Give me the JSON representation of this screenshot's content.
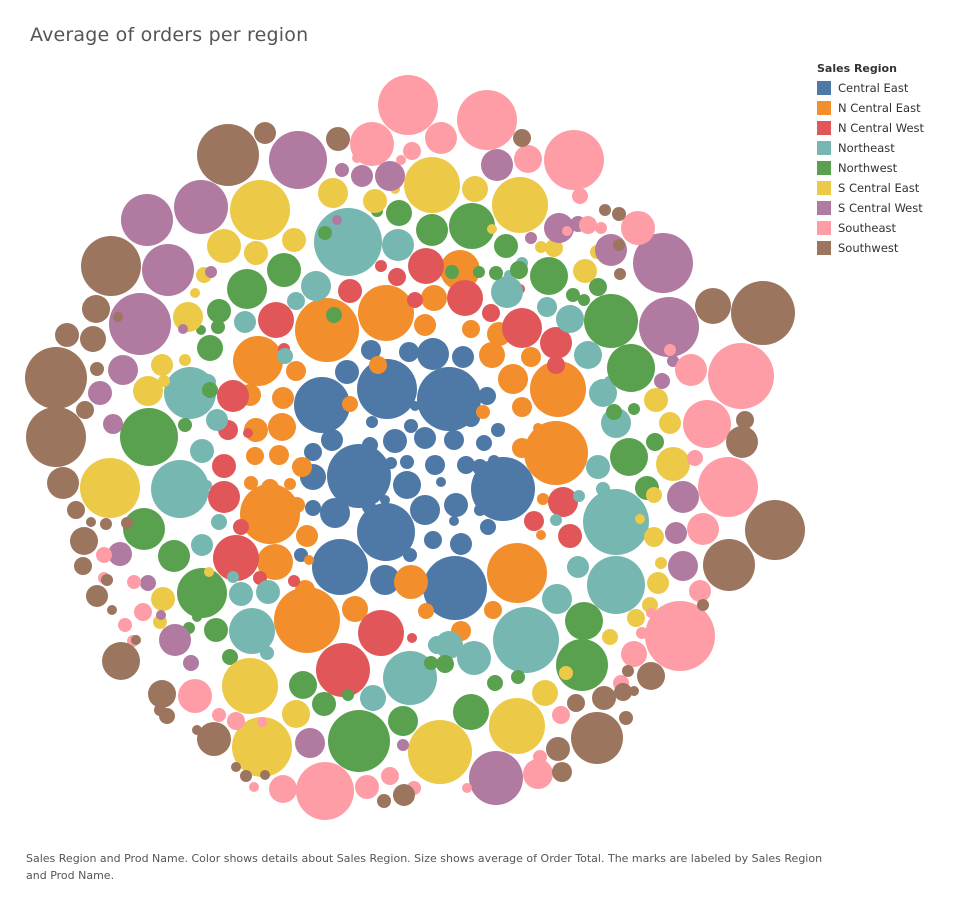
{
  "chart_data": {
    "type": "bubble",
    "title": "Average of orders per region",
    "caption": "Sales Region and Prod Name.  Color shows details about Sales Region.  Size shows average of Order Total.  The marks are labeled by Sales Region and Prod Name.",
    "legend": {
      "title": "Sales Region",
      "placement": "top-right",
      "entries": [
        {
          "label": "Central East",
          "color": "#4e79a7"
        },
        {
          "label": "N Central East",
          "color": "#f28e2b"
        },
        {
          "label": "N Central West",
          "color": "#e15759"
        },
        {
          "label": "Northeast",
          "color": "#76b7b2"
        },
        {
          "label": "Northwest",
          "color": "#59a14f"
        },
        {
          "label": "S Central East",
          "color": "#edc948"
        },
        {
          "label": "S Central West",
          "color": "#b07aa1"
        },
        {
          "label": "Southeast",
          "color": "#ff9da7"
        },
        {
          "label": "Southwest",
          "color": "#9c755f"
        }
      ]
    }
  }
}
